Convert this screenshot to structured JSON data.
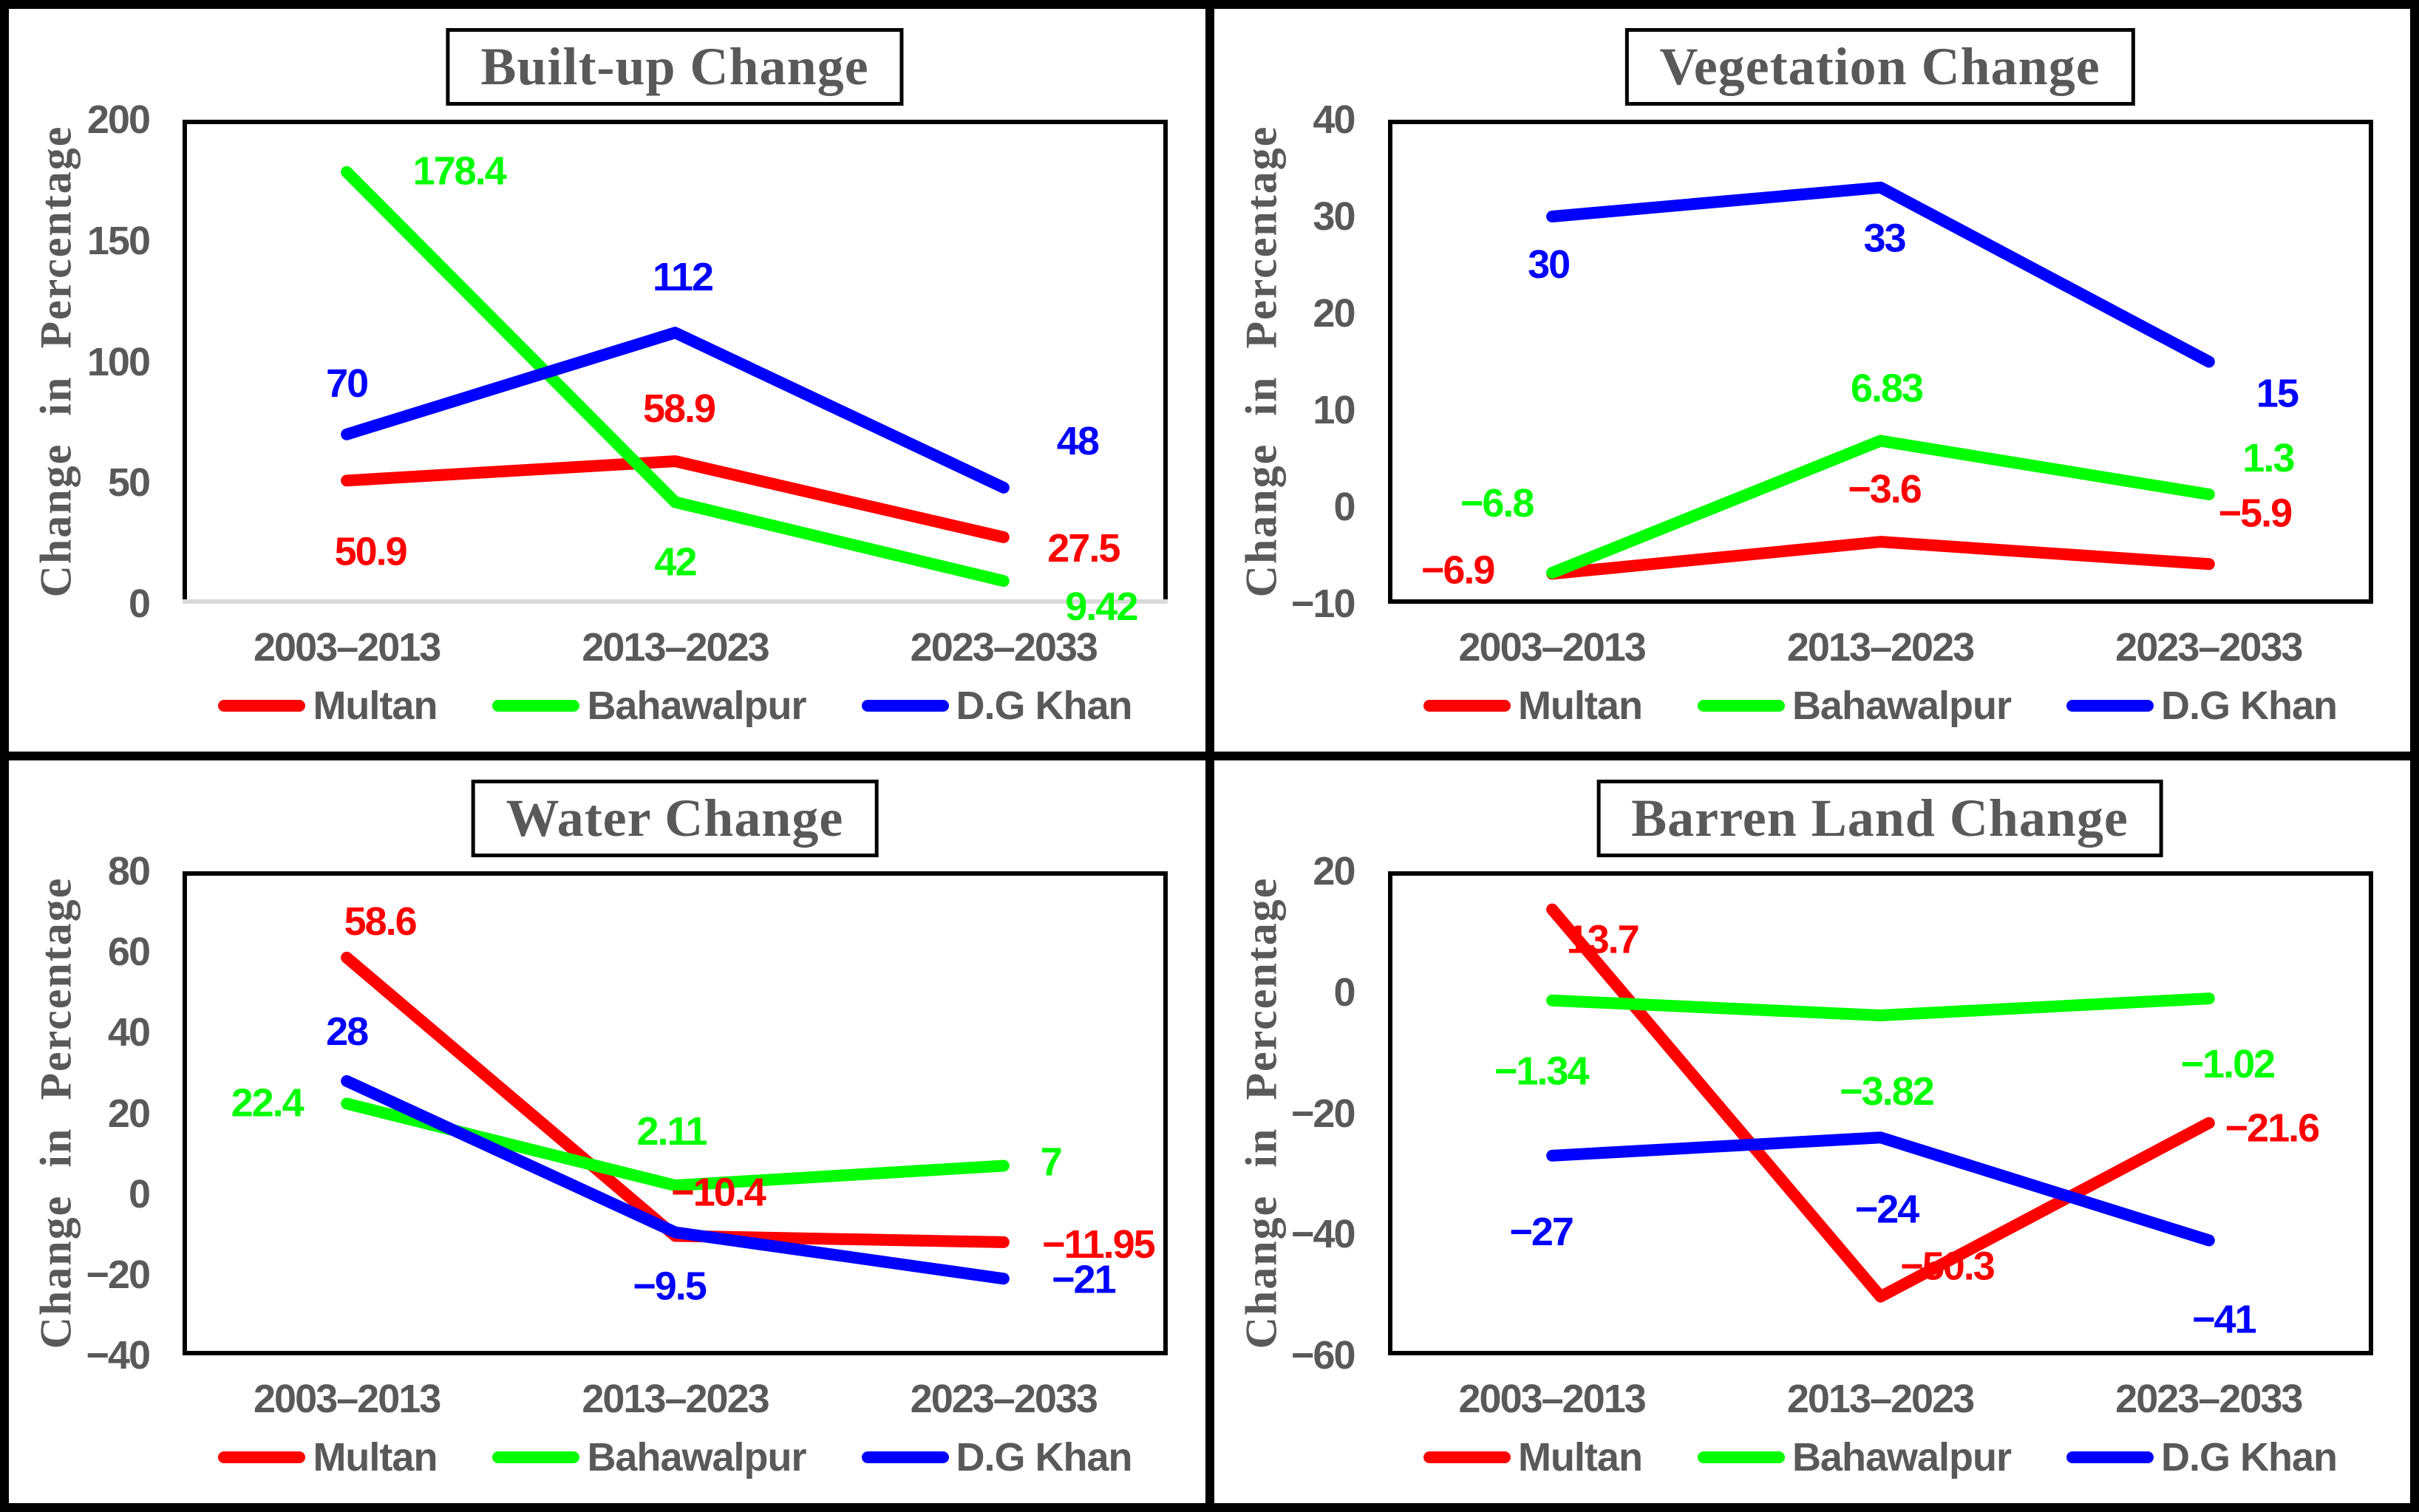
{
  "figure": {
    "ylabel": "Change in Percentage",
    "categories": [
      "2003–2013",
      "2013–2023",
      "2023–2033"
    ],
    "legend": [
      "Multan",
      "Bahawalpur",
      "D.G Khan"
    ],
    "colors": {
      "multan": "#FF0000",
      "bahawalpur": "#00FF00",
      "dg_khan": "#0000FF",
      "text_gray": "#595959",
      "border_black": "#000000",
      "builtup_baseline_gray": "#D9D9D9"
    }
  },
  "chart_data": [
    {
      "type": "line",
      "title": "Built-up Change",
      "ylabel": "Change in Percentage",
      "x": [
        "2003–2013",
        "2013–2023",
        "2023–2033"
      ],
      "ylim": [
        0,
        200
      ],
      "yticks": [
        0,
        50,
        100,
        150,
        200
      ],
      "grid": false,
      "legend_position": "bottom",
      "axis_line_color": "#D9D9D9",
      "series": [
        {
          "name": "Multan",
          "color": "#FF0000",
          "values": [
            50.9,
            58.9,
            27.5
          ]
        },
        {
          "name": "Bahawalpur",
          "color": "#00FF00",
          "values": [
            178.4,
            42,
            9.42
          ]
        },
        {
          "name": "D.G Khan",
          "color": "#0000FF",
          "values": [
            70,
            112,
            48
          ]
        }
      ]
    },
    {
      "type": "line",
      "title": "Vegetation Change",
      "ylabel": "Change  in Percentage",
      "x": [
        "2003–2013",
        "2013–2023",
        "2023–2033"
      ],
      "ylim": [
        -10,
        40
      ],
      "yticks": [
        -10,
        0,
        10,
        20,
        30,
        40
      ],
      "grid": false,
      "legend_position": "bottom",
      "axis_line_color": "#000000",
      "series": [
        {
          "name": "Multan",
          "color": "#FF0000",
          "values": [
            -6.9,
            -3.6,
            -5.9
          ]
        },
        {
          "name": "Bahawalpur",
          "color": "#00FF00",
          "values": [
            -6.8,
            6.83,
            1.3
          ]
        },
        {
          "name": "D.G Khan",
          "color": "#0000FF",
          "values": [
            30,
            33,
            15
          ]
        }
      ]
    },
    {
      "type": "line",
      "title": "Water Change",
      "ylabel": "Change in Percentage",
      "x": [
        "2003–2013",
        "2013–2023",
        "2023–2033"
      ],
      "ylim": [
        -40,
        80
      ],
      "yticks": [
        -40,
        -20,
        0,
        20,
        40,
        60,
        80
      ],
      "grid": false,
      "legend_position": "bottom",
      "axis_line_color": "#000000",
      "series": [
        {
          "name": "Multan",
          "color": "#FF0000",
          "values": [
            58.6,
            -10.4,
            -11.95
          ]
        },
        {
          "name": "Bahawalpur",
          "color": "#00FF00",
          "values": [
            22.4,
            2.11,
            7
          ]
        },
        {
          "name": "D.G Khan",
          "color": "#0000FF",
          "values": [
            28,
            -9.5,
            -21
          ]
        }
      ]
    },
    {
      "type": "line",
      "title": "Barren Land Change",
      "ylabel": "Change  in  Percentage",
      "x": [
        "2003–2013",
        "2013–2023",
        "2023–2033"
      ],
      "ylim": [
        -60,
        20
      ],
      "yticks": [
        -60,
        -40,
        -20,
        0,
        20
      ],
      "grid": false,
      "legend_position": "bottom",
      "axis_line_color": "#000000",
      "series": [
        {
          "name": "Multan",
          "color": "#FF0000",
          "values": [
            13.7,
            -50.3,
            -21.6
          ]
        },
        {
          "name": "Bahawalpur",
          "color": "#00FF00",
          "values": [
            -1.34,
            -3.82,
            -1.02
          ]
        },
        {
          "name": "D.G Khan",
          "color": "#0000FF",
          "values": [
            -27,
            -24,
            -41
          ]
        }
      ]
    }
  ]
}
